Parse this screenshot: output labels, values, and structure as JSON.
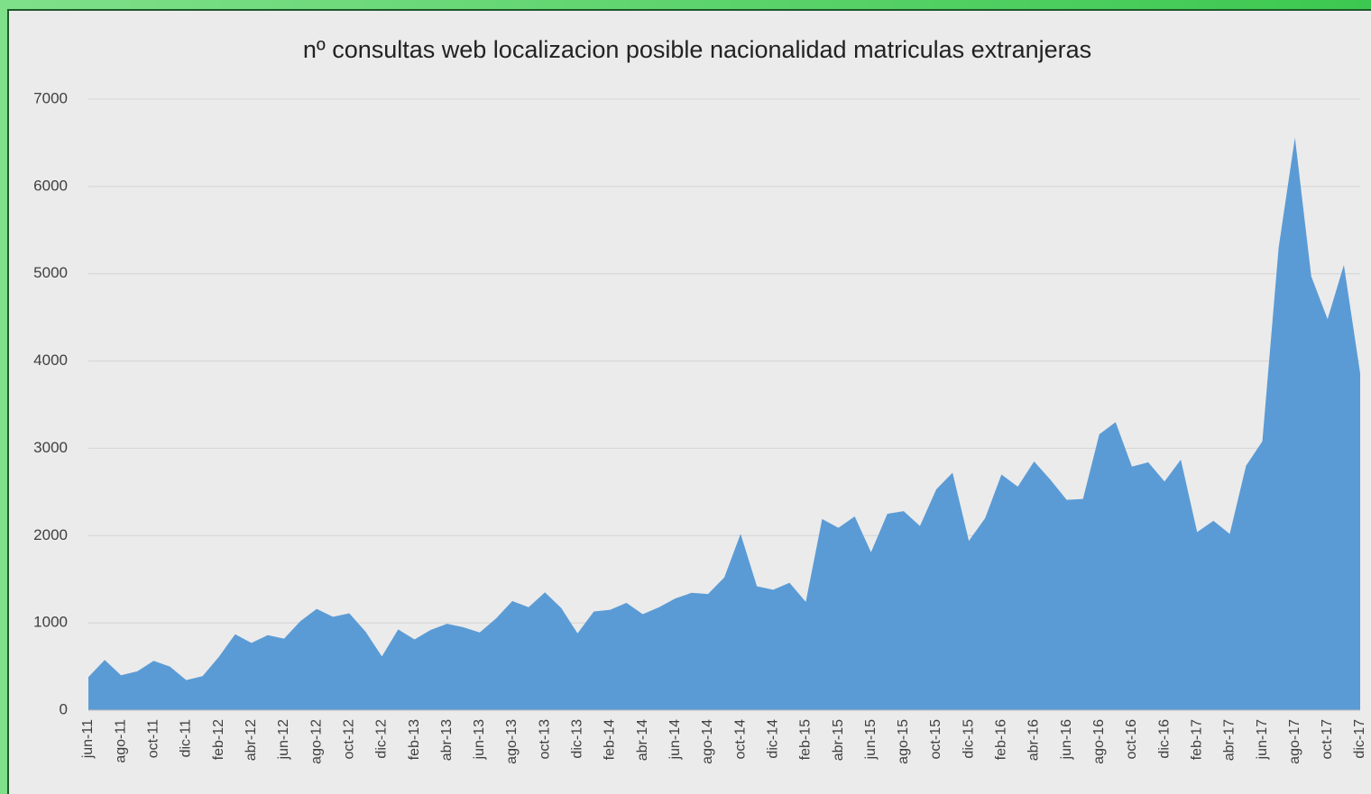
{
  "chart_data": {
    "type": "area",
    "title": "nº consultas web localizacion posible nacionalidad matriculas extranjeras",
    "categories": [
      "jun-11",
      null,
      "ago-11",
      null,
      "oct-11",
      null,
      "dic-11",
      null,
      "feb-12",
      null,
      "abr-12",
      null,
      "jun-12",
      null,
      "ago-12",
      null,
      "oct-12",
      null,
      "dic-12",
      null,
      "feb-13",
      null,
      "abr-13",
      null,
      "jun-13",
      null,
      "ago-13",
      null,
      "oct-13",
      null,
      "dic-13",
      null,
      "feb-14",
      null,
      "abr-14",
      null,
      "jun-14",
      null,
      "ago-14",
      null,
      "oct-14",
      null,
      "dic-14",
      null,
      "feb-15",
      null,
      "abr-15",
      null,
      "jun-15",
      null,
      "ago-15",
      null,
      "oct-15",
      null,
      "dic-15",
      null,
      "feb-16",
      null,
      "abr-16",
      null,
      "jun-16",
      null,
      "ago-16",
      null,
      "oct-16",
      null,
      "dic-16",
      null,
      "feb-17",
      null,
      "abr-17",
      null,
      "jun-17",
      null,
      "ago-17",
      null,
      "oct-17",
      null,
      "dic-17"
    ],
    "values": [
      380,
      575,
      400,
      445,
      565,
      500,
      345,
      390,
      610,
      870,
      770,
      860,
      820,
      1020,
      1160,
      1070,
      1110,
      900,
      615,
      925,
      810,
      920,
      990,
      950,
      890,
      1050,
      1250,
      1180,
      1350,
      1170,
      880,
      1130,
      1150,
      1230,
      1100,
      1180,
      1280,
      1345,
      1330,
      1520,
      2020,
      1420,
      1380,
      1460,
      1240,
      2190,
      2090,
      2220,
      1810,
      2250,
      2280,
      2110,
      2530,
      2720,
      1940,
      2200,
      2700,
      2560,
      2850,
      2640,
      2410,
      2420,
      3160,
      3300,
      2790,
      2840,
      2620,
      2870,
      2040,
      2170,
      2020,
      2800,
      3080,
      5300,
      6560,
      4970,
      4480,
      5100,
      3860
    ],
    "color": "#5b9bd5",
    "ylim": [
      0,
      7000
    ],
    "yticks": [
      0,
      1000,
      2000,
      3000,
      4000,
      5000,
      6000,
      7000
    ],
    "grid": true
  }
}
